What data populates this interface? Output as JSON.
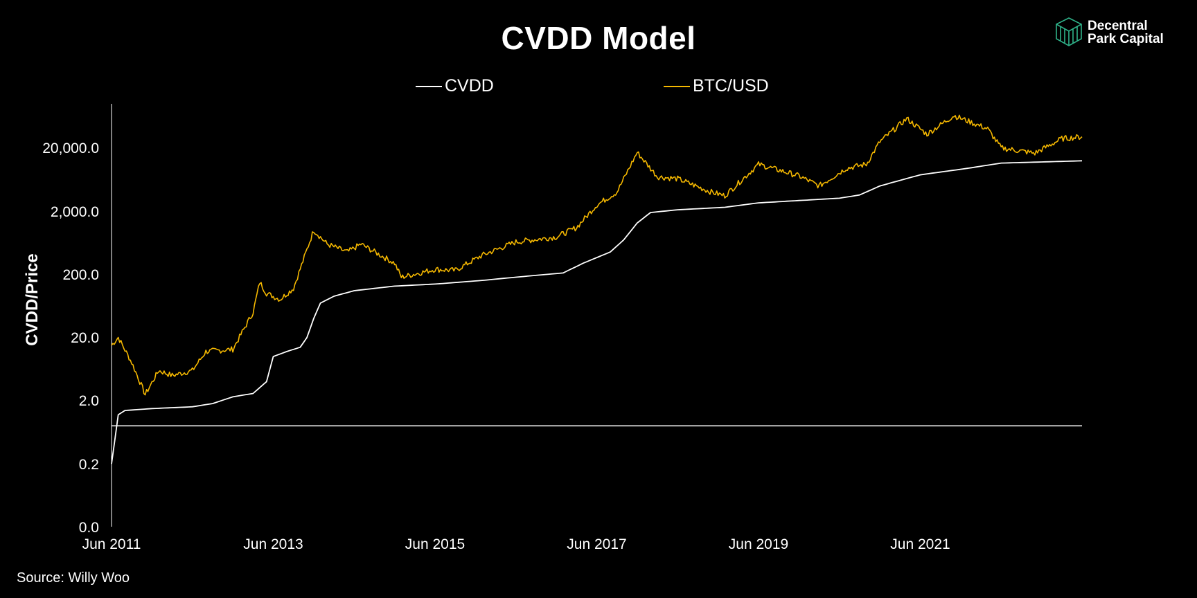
{
  "chart_data": {
    "type": "line",
    "title": "CVDD Model",
    "ylabel": "CVDD/Price",
    "xlabel": "",
    "x_ticks": [
      "Jun 2011",
      "Jun 2013",
      "Jun 2015",
      "Jun 2017",
      "Jun 2019",
      "Jun 2021"
    ],
    "x_range": [
      "2011-06",
      "2023-06"
    ],
    "y_ticks": [
      "0.0",
      "0.2",
      "2.0",
      "20.0",
      "200.0",
      "2,000.0",
      "20,000.0"
    ],
    "y_scale": "log",
    "legend_position": "top-center",
    "grid": false,
    "reference_line": {
      "y": 0.8,
      "color": "#ffffff"
    },
    "series": [
      {
        "name": "CVDD",
        "color": "#ffffff",
        "points": [
          [
            "2011-06",
            0.2
          ],
          [
            "2011-07",
            1.2
          ],
          [
            "2011-08",
            1.4
          ],
          [
            "2011-12",
            1.5
          ],
          [
            "2012-06",
            1.6
          ],
          [
            "2012-09",
            1.8
          ],
          [
            "2012-12",
            2.3
          ],
          [
            "2013-03",
            2.6
          ],
          [
            "2013-05",
            4
          ],
          [
            "2013-06",
            10
          ],
          [
            "2013-08",
            12
          ],
          [
            "2013-10",
            14
          ],
          [
            "2013-11",
            20
          ],
          [
            "2013-12",
            40
          ],
          [
            "2014-01",
            70
          ],
          [
            "2014-03",
            90
          ],
          [
            "2014-06",
            110
          ],
          [
            "2014-12",
            130
          ],
          [
            "2015-06",
            140
          ],
          [
            "2016-01",
            160
          ],
          [
            "2016-06",
            180
          ],
          [
            "2017-01",
            210
          ],
          [
            "2017-04",
            300
          ],
          [
            "2017-08",
            450
          ],
          [
            "2017-10",
            700
          ],
          [
            "2017-12",
            1300
          ],
          [
            "2018-02",
            1900
          ],
          [
            "2018-06",
            2100
          ],
          [
            "2019-01",
            2300
          ],
          [
            "2019-06",
            2700
          ],
          [
            "2020-06",
            3200
          ],
          [
            "2020-09",
            3600
          ],
          [
            "2020-12",
            5000
          ],
          [
            "2021-06",
            7500
          ],
          [
            "2022-01",
            9500
          ],
          [
            "2022-06",
            11500
          ],
          [
            "2023-06",
            12500
          ]
        ]
      },
      {
        "name": "BTC/USD",
        "color": "#f5b800",
        "points": [
          [
            "2011-06",
            15
          ],
          [
            "2011-07",
            20
          ],
          [
            "2011-09",
            8
          ],
          [
            "2011-11",
            2.5
          ],
          [
            "2012-01",
            6
          ],
          [
            "2012-03",
            5
          ],
          [
            "2012-06",
            6
          ],
          [
            "2012-08",
            12
          ],
          [
            "2012-12",
            13
          ],
          [
            "2013-03",
            50
          ],
          [
            "2013-04",
            150
          ],
          [
            "2013-05",
            100
          ],
          [
            "2013-07",
            80
          ],
          [
            "2013-09",
            120
          ],
          [
            "2013-12",
            1000
          ],
          [
            "2014-02",
            600
          ],
          [
            "2014-05",
            450
          ],
          [
            "2014-07",
            600
          ],
          [
            "2014-12",
            300
          ],
          [
            "2015-01",
            180
          ],
          [
            "2015-06",
            240
          ],
          [
            "2015-09",
            230
          ],
          [
            "2016-01",
            400
          ],
          [
            "2016-06",
            650
          ],
          [
            "2016-12",
            780
          ],
          [
            "2017-03",
            1100
          ],
          [
            "2017-06",
            2500
          ],
          [
            "2017-09",
            4000
          ],
          [
            "2017-12",
            17000
          ],
          [
            "2018-03",
            7000
          ],
          [
            "2018-06",
            6500
          ],
          [
            "2018-11",
            4000
          ],
          [
            "2019-01",
            3500
          ],
          [
            "2019-06",
            11000
          ],
          [
            "2019-12",
            7200
          ],
          [
            "2020-03",
            5000
          ],
          [
            "2020-07",
            9500
          ],
          [
            "2020-10",
            11000
          ],
          [
            "2020-12",
            25000
          ],
          [
            "2021-04",
            58000
          ],
          [
            "2021-07",
            33000
          ],
          [
            "2021-11",
            65000
          ],
          [
            "2022-04",
            40000
          ],
          [
            "2022-06",
            20000
          ],
          [
            "2022-11",
            16500
          ],
          [
            "2023-03",
            28000
          ],
          [
            "2023-06",
            30000
          ]
        ]
      }
    ]
  },
  "footer": {
    "source": "Source: Willy Woo"
  },
  "brand": {
    "name": "Decentral\nPark Capital",
    "accent": "#2fb38a"
  }
}
